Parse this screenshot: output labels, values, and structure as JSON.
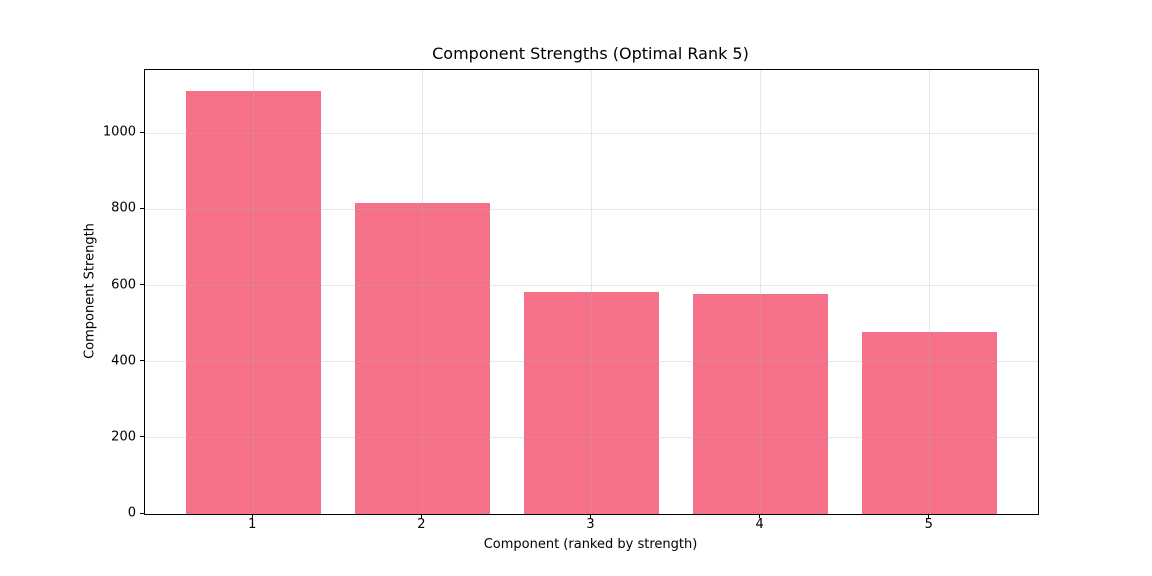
{
  "chart_data": {
    "type": "bar",
    "title": "Component Strengths (Optimal Rank 5)",
    "xlabel": "Component (ranked by strength)",
    "ylabel": "Component Strength",
    "categories": [
      "1",
      "2",
      "3",
      "4",
      "5"
    ],
    "values": [
      1112,
      816,
      582,
      578,
      478
    ],
    "yticks": [
      0,
      200,
      400,
      600,
      800,
      1000
    ],
    "ylim": [
      0,
      1166
    ],
    "xlim": [
      0.36,
      5.64
    ],
    "bar_width": 0.8,
    "bar_color": "#f5718a",
    "grid": true,
    "grid_color": "#b0b0b0",
    "grid_alpha": 0.3,
    "spine_color": "#000000",
    "legend_position": "none"
  }
}
